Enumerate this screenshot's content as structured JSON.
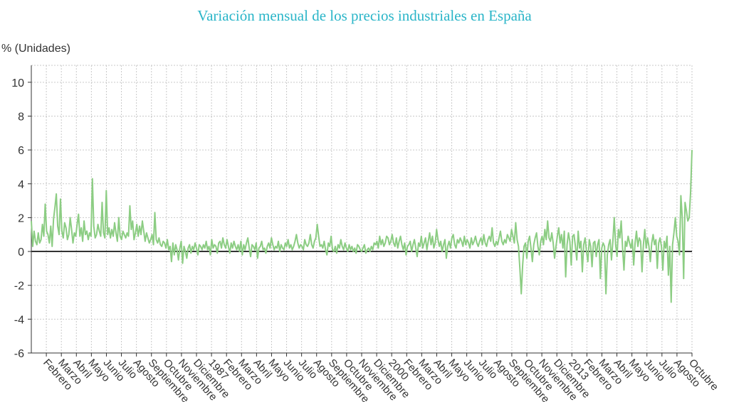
{
  "chart_data": {
    "type": "line",
    "title": "Variación mensual de los precios industriales en España",
    "ylabel": "% (Unidades)",
    "xlabel": "",
    "ylim": [
      -6,
      11
    ],
    "yticks": [
      -6,
      -4,
      -2,
      0,
      2,
      4,
      6,
      8,
      10
    ],
    "grid": true,
    "colors": {
      "title": "#2ab5c8",
      "series": "#8ccd83",
      "grid": "#c9c9c9",
      "axis": "#333333"
    },
    "x_tick_labels": [
      "Febrero",
      "Marzo",
      "Abril",
      "Mayo",
      "Junio",
      "Julio",
      "Agosto",
      "Septiembre",
      "Octubre",
      "Noviembre",
      "Diciembre",
      "1987",
      "Febrero",
      "Marzo",
      "Abril",
      "Mayo",
      "Junio",
      "Julio",
      "Agosto",
      "Septiembre",
      "Octubre",
      "Noviembre",
      "Diciembre",
      "2000",
      "Febrero",
      "Marzo",
      "Abril",
      "Mayo",
      "Junio",
      "Julio",
      "Agosto",
      "Septiembre",
      "Octubre",
      "Noviembre",
      "Diciembre",
      "2013",
      "Febrero",
      "Marzo",
      "Abril",
      "Mayo",
      "Junio",
      "Julio",
      "Agosto",
      "Octubre"
    ],
    "series": [
      {
        "values": [
          1.8,
          0.3,
          1.2,
          0.6,
          0.4,
          1.1,
          0.5,
          0.7,
          1.6,
          0.9,
          2.8,
          1.2,
          1.0,
          0.5,
          1.5,
          0.3,
          1.9,
          2.6,
          3.4,
          1.5,
          1.0,
          3.1,
          1.2,
          0.8,
          1.7,
          1.4,
          0.7,
          1.0,
          2.0,
          1.3,
          0.5,
          1.1,
          0.9,
          1.6,
          2.2,
          0.9,
          1.4,
          0.6,
          1.8,
          1.0,
          1.2,
          0.7,
          1.1,
          0.9,
          4.3,
          1.5,
          0.8,
          1.0,
          1.6,
          1.2,
          0.9,
          2.9,
          1.1,
          0.8,
          3.6,
          1.0,
          1.4,
          0.8,
          1.3,
          0.9,
          1.7,
          1.1,
          0.6,
          2.0,
          0.9,
          0.7,
          1.2,
          1.0,
          0.8,
          1.1,
          0.9,
          2.7,
          1.3,
          1.8,
          0.7,
          1.1,
          1.6,
          0.9,
          1.5,
          1.0,
          1.8,
          1.2,
          0.6,
          1.1,
          0.8,
          0.5,
          0.7,
          1.0,
          0.4,
          2.3,
          0.7,
          0.5,
          0.8,
          0.4,
          0.3,
          0.6,
          0.5,
          0.2,
          0.7,
          0.1,
          0.3,
          -0.6,
          0.5,
          -0.2,
          0.4,
          0.1,
          -0.5,
          0.2,
          0.6,
          -0.7,
          0.3,
          0.0,
          -0.4,
          0.2,
          0.4,
          -0.1,
          0.3,
          0.1,
          0.5,
          0.2,
          -0.2,
          0.4,
          0.3,
          0.1,
          0.4,
          0.2,
          0.6,
          0.1,
          0.3,
          -0.2,
          0.7,
          0.2,
          0.4,
          0.3,
          -0.1,
          0.5,
          0.6,
          0.2,
          0.8,
          0.4,
          0.2,
          0.7,
          0.3,
          -0.1,
          0.5,
          0.2,
          0.6,
          0.3,
          0.1,
          0.4,
          0.0,
          0.6,
          -0.2,
          0.4,
          0.1,
          0.5,
          0.8,
          0.2,
          -0.3,
          0.4,
          0.3,
          0.1,
          0.5,
          -0.4,
          0.2,
          0.3,
          0.6,
          0.1,
          0.2,
          -0.1,
          0.3,
          0.5,
          0.2,
          0.8,
          0.4,
          0.1,
          0.3,
          0.2,
          0.6,
          0.0,
          0.4,
          0.2,
          0.1,
          0.5,
          0.3,
          0.7,
          0.2,
          0.4,
          0.1,
          0.3,
          0.6,
          1.0,
          0.5,
          0.2,
          0.4,
          0.3,
          0.1,
          0.7,
          0.4,
          0.3,
          0.5,
          1.0,
          0.4,
          0.2,
          0.6,
          0.8,
          1.6,
          0.9,
          0.3,
          0.4,
          0.2,
          0.6,
          0.1,
          -0.2,
          0.5,
          0.3,
          0.9,
          0.1,
          0.0,
          0.3,
          -0.1,
          0.4,
          0.2,
          0.7,
          0.3,
          0.1,
          0.5,
          0.2,
          0.0,
          0.4,
          0.1,
          0.3,
          0.0,
          0.2,
          -0.1,
          0.4,
          0.3,
          0.1,
          0.0,
          0.2,
          0.4,
          -0.1,
          0.1,
          0.2,
          0.0,
          0.3,
          0.1,
          0.5,
          0.4,
          0.6,
          0.2,
          0.9,
          0.4,
          0.7,
          0.3,
          0.5,
          0.9,
          0.8,
          0.4,
          0.6,
          1.0,
          0.5,
          0.3,
          0.8,
          0.2,
          0.6,
          0.9,
          0.4,
          0.1,
          0.5,
          -0.2,
          0.3,
          0.4,
          0.6,
          0.0,
          0.4,
          0.7,
          0.2,
          -0.3,
          0.5,
          0.3,
          0.9,
          0.2,
          0.5,
          0.8,
          0.1,
          0.6,
          1.1,
          0.4,
          0.9,
          0.2,
          0.5,
          1.3,
          0.7,
          0.3,
          0.6,
          0.0,
          0.4,
          0.7,
          -0.4,
          0.3,
          0.6,
          0.2,
          0.8,
          1.0,
          0.4,
          0.2,
          0.7,
          0.5,
          0.8,
          0.6,
          0.3,
          0.9,
          0.4,
          0.7,
          0.5,
          0.2,
          0.8,
          0.4,
          0.6,
          0.9,
          0.5,
          0.3,
          0.6,
          0.8,
          0.4,
          1.0,
          0.5,
          0.3,
          0.7,
          0.9,
          0.6,
          1.4,
          0.5,
          0.3,
          0.6,
          0.4,
          0.8,
          1.2,
          0.6,
          0.4,
          0.7,
          0.5,
          1.0,
          0.8,
          0.6,
          1.3,
          0.9,
          0.5,
          1.7,
          0.7,
          0.3,
          -1.0,
          -2.5,
          -0.8,
          0.3,
          0.5,
          -0.4,
          0.6,
          0.9,
          0.2,
          -0.6,
          0.4,
          0.8,
          1.1,
          0.3,
          -0.2,
          0.6,
          0.9,
          0.4,
          1.3,
          0.7,
          1.8,
          0.8,
          0.6,
          1.1,
          0.5,
          -0.4,
          0.3,
          0.9,
          1.4,
          0.5,
          1.0,
          0.2,
          1.2,
          -1.5,
          0.4,
          1.1,
          0.6,
          -0.8,
          0.9,
          1.0,
          0.3,
          -0.5,
          1.2,
          0.2,
          0.6,
          -1.2,
          0.4,
          0.8,
          0.0,
          -0.6,
          0.7,
          0.3,
          -0.9,
          0.5,
          0.6,
          -0.3,
          0.4,
          0.7,
          -1.6,
          0.2,
          0.5,
          0.3,
          -2.5,
          -0.2,
          0.4,
          0.7,
          -0.5,
          0.6,
          2.0,
          0.4,
          -0.3,
          1.3,
          0.8,
          1.8,
          0.2,
          -1.1,
          0.6,
          0.3,
          0.9,
          0.5,
          0.2,
          0.7,
          -0.8,
          0.5,
          1.2,
          0.3,
          0.8,
          0.6,
          -1.2,
          0.4,
          1.3,
          0.2,
          0.8,
          0.3,
          -0.6,
          0.5,
          1.0,
          0.4,
          0.7,
          -1.0,
          0.5,
          0.8,
          0.3,
          -1.1,
          0.6,
          0.2,
          0.9,
          -1.4,
          0.3,
          -3.0,
          0.4,
          1.1,
          2.0,
          0.9,
          0.6,
          -0.2,
          3.3,
          2.0,
          -1.6,
          2.9,
          2.4,
          1.8,
          2.0,
          3.5,
          6.0
        ]
      }
    ]
  }
}
